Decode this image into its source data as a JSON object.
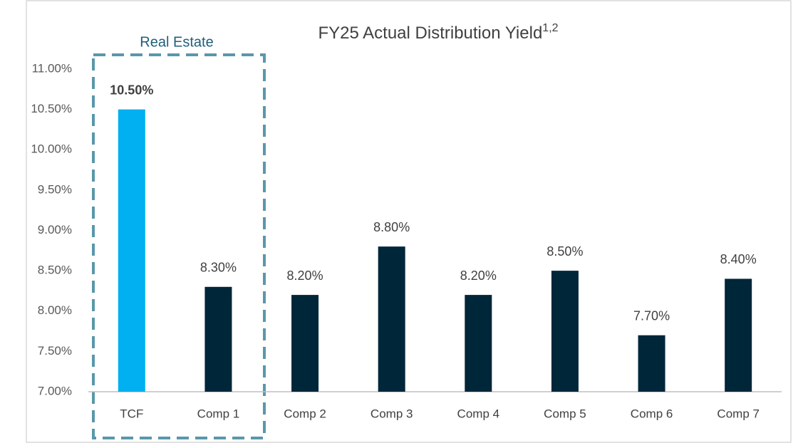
{
  "chart_data": {
    "type": "bar",
    "title": "FY25 Actual Distribution Yield",
    "title_superscript": "1,2",
    "annotation": "Real Estate",
    "categories": [
      "TCF",
      "Comp 1",
      "Comp 2",
      "Comp 3",
      "Comp 4",
      "Comp 5",
      "Comp 6",
      "Comp 7"
    ],
    "values": [
      10.5,
      8.3,
      8.2,
      8.8,
      8.2,
      8.5,
      7.7,
      8.4
    ],
    "value_labels": [
      "10.50%",
      "8.30%",
      "8.20%",
      "8.80%",
      "8.20%",
      "8.50%",
      "7.70%",
      "8.40%"
    ],
    "colors": [
      "#00b0f0",
      "#002639",
      "#002639",
      "#002639",
      "#002639",
      "#002639",
      "#002639",
      "#002639"
    ],
    "ylim": [
      7,
      11
    ],
    "yticks": [
      {
        "value": 7,
        "label": "7.00%"
      },
      {
        "value": 7.5,
        "label": "7.50%"
      },
      {
        "value": 8,
        "label": "8.00%"
      },
      {
        "value": 8.5,
        "label": "8.50%"
      },
      {
        "value": 9,
        "label": "9.00%"
      },
      {
        "value": 9.5,
        "label": "9.50%"
      },
      {
        "value": 10,
        "label": "10.00%"
      },
      {
        "value": 10.5,
        "label": "10.50%"
      },
      {
        "value": 11,
        "label": "11.00%"
      }
    ],
    "grid": false
  }
}
